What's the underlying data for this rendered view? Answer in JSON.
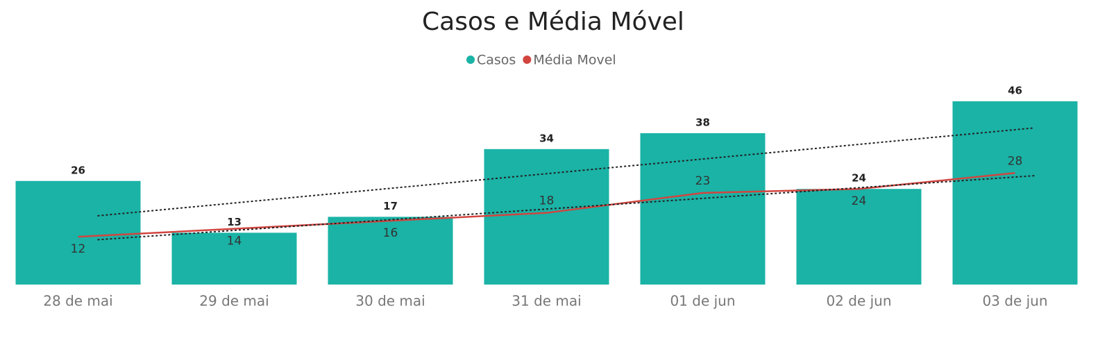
{
  "chart_data": {
    "type": "bar-line",
    "title": "Casos e Média Móvel",
    "categories": [
      "28 de mai",
      "29 de mai",
      "30 de mai",
      "31 de mai",
      "01 de jun",
      "02 de jun",
      "03 de jun"
    ],
    "series": [
      {
        "name": "Casos",
        "color": "#1ab3a6",
        "type": "bar",
        "values": [
          26,
          13,
          17,
          34,
          38,
          24,
          46
        ]
      },
      {
        "name": "Média Movel",
        "color": "#d2453f",
        "type": "line",
        "values": [
          12,
          14,
          16,
          18,
          23,
          24,
          28
        ]
      }
    ],
    "trendline": true,
    "legend": "top"
  }
}
